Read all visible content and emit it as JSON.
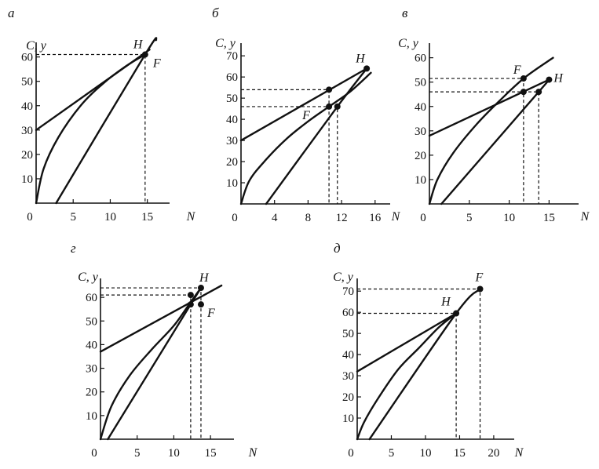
{
  "chart_data": [
    {
      "type": "line",
      "panel": "а",
      "xlabel": "N",
      "ylabel": "C, y",
      "xlim": [
        0,
        18
      ],
      "ylim": [
        0,
        66
      ],
      "xticks": [
        0,
        5,
        10,
        15
      ],
      "yticks": [
        10,
        20,
        30,
        40,
        50,
        60
      ],
      "series": [
        {
          "points": [
            [
              0,
              30
            ],
            [
              15.3,
              63
            ]
          ]
        },
        {
          "points": [
            [
              0,
              0
            ],
            [
              1,
              14
            ],
            [
              3,
              27
            ],
            [
              6,
              40
            ],
            [
              9,
              49
            ],
            [
              12,
              56
            ],
            [
              14.7,
              61
            ]
          ]
        },
        {
          "points": [
            [
              2.7,
              0
            ],
            [
              14.7,
              61
            ],
            [
              16.2,
              67
            ]
          ]
        }
      ],
      "points": [
        {
          "label": "H",
          "x": 14.7,
          "y": 61
        }
      ],
      "point_labels": [
        {
          "text": "H",
          "x": 14.7,
          "y": 61
        },
        {
          "text": "F",
          "x": 14.7,
          "y": 61
        }
      ],
      "guides": [
        {
          "x": 14.7,
          "y": 61
        }
      ]
    },
    {
      "type": "line",
      "panel": "б",
      "xlabel": "N",
      "ylabel": "C, y",
      "xlim": [
        0,
        17.8
      ],
      "ylim": [
        0,
        76
      ],
      "xticks": [
        0,
        4,
        8,
        12,
        16
      ],
      "yticks": [
        10,
        20,
        30,
        40,
        50,
        60,
        70
      ],
      "series": [
        {
          "points": [
            [
              0,
              30
            ],
            [
              15,
              64
            ]
          ]
        },
        {
          "points": [
            [
              0,
              0
            ],
            [
              1,
              11
            ],
            [
              3,
              21
            ],
            [
              5.5,
              31
            ],
            [
              8,
              39
            ],
            [
              10.5,
              46
            ],
            [
              13,
              53
            ],
            [
              15.5,
              62
            ]
          ]
        },
        {
          "points": [
            [
              3,
              0
            ],
            [
              11.5,
              46
            ],
            [
              15,
              64
            ]
          ]
        }
      ],
      "points": [
        {
          "x": 15,
          "y": 64
        },
        {
          "x": 10.5,
          "y": 54
        },
        {
          "x": 10.5,
          "y": 46
        },
        {
          "x": 11.5,
          "y": 46
        }
      ],
      "point_labels": [
        {
          "text": "H",
          "x": 15,
          "y": 64
        },
        {
          "text": "F",
          "x": 10.5,
          "y": 46
        }
      ],
      "guides": [
        {
          "x": 10.5,
          "y": 54
        },
        {
          "x": 11.5,
          "y": 46
        }
      ]
    },
    {
      "type": "line",
      "panel": "в",
      "xlabel": "N",
      "ylabel": "C, y",
      "xlim": [
        0,
        18.7
      ],
      "ylim": [
        0,
        66
      ],
      "xticks": [
        0,
        5,
        10,
        15
      ],
      "yticks": [
        10,
        20,
        30,
        40,
        50,
        60
      ],
      "series": [
        {
          "points": [
            [
              0,
              28
            ],
            [
              15,
              51
            ]
          ]
        },
        {
          "points": [
            [
              0,
              0
            ],
            [
              1,
              10
            ],
            [
              3,
              21
            ],
            [
              6,
              33
            ],
            [
              9,
              43
            ],
            [
              12,
              52
            ],
            [
              15.5,
              60
            ]
          ]
        },
        {
          "points": [
            [
              1.5,
              0
            ],
            [
              13.7,
              46
            ],
            [
              15,
              51
            ]
          ]
        }
      ],
      "points": [
        {
          "x": 15,
          "y": 51
        },
        {
          "x": 11.8,
          "y": 51.5
        },
        {
          "x": 11.8,
          "y": 46
        },
        {
          "x": 13.7,
          "y": 46
        }
      ],
      "point_labels": [
        {
          "text": "H",
          "x": 15,
          "y": 51
        },
        {
          "text": "F",
          "x": 11.8,
          "y": 51.5
        }
      ],
      "guides": [
        {
          "x": 11.8,
          "y": 51.5
        },
        {
          "x": 13.7,
          "y": 46
        }
      ]
    },
    {
      "type": "line",
      "panel": "г",
      "xlabel": "N",
      "ylabel": "C, y",
      "xlim": [
        0,
        18.2
      ],
      "ylim": [
        0,
        68
      ],
      "xticks": [
        0,
        5,
        10,
        15
      ],
      "yticks": [
        10,
        20,
        30,
        40,
        50,
        60
      ],
      "series": [
        {
          "points": [
            [
              0,
              37
            ],
            [
              16.5,
              65
            ]
          ]
        },
        {
          "points": [
            [
              0,
              0
            ],
            [
              1.5,
              14
            ],
            [
              4,
              27
            ],
            [
              7,
              38
            ],
            [
              10,
              48
            ],
            [
              12.3,
              58
            ],
            [
              13.7,
              64
            ]
          ]
        },
        {
          "points": [
            [
              1,
              0
            ],
            [
              12.3,
              57
            ],
            [
              13.7,
              64
            ]
          ]
        }
      ],
      "points": [
        {
          "x": 13.7,
          "y": 64
        },
        {
          "x": 12.3,
          "y": 61
        },
        {
          "x": 12.3,
          "y": 57
        },
        {
          "x": 13.7,
          "y": 57
        }
      ],
      "point_labels": [
        {
          "text": "H",
          "x": 13.7,
          "y": 64
        },
        {
          "text": "F",
          "x": 13.7,
          "y": 57
        }
      ],
      "guides": [
        {
          "x": 13.7,
          "y": 64
        },
        {
          "x": 12.3,
          "y": 61
        }
      ]
    },
    {
      "type": "line",
      "panel": "д",
      "xlabel": "N",
      "ylabel": "C, y",
      "xlim": [
        0,
        23
      ],
      "ylim": [
        0,
        76
      ],
      "xticks": [
        0,
        5,
        10,
        15,
        20
      ],
      "yticks": [
        10,
        20,
        30,
        40,
        50,
        60,
        70
      ],
      "series": [
        {
          "points": [
            [
              0,
              32
            ],
            [
              14.5,
              59.5
            ]
          ]
        },
        {
          "points": [
            [
              0,
              0
            ],
            [
              1,
              8
            ],
            [
              3,
              19
            ],
            [
              6,
              33
            ],
            [
              9,
              43
            ],
            [
              12,
              53
            ],
            [
              14.5,
              59.5
            ]
          ]
        },
        {
          "points": [
            [
              1.8,
              0
            ],
            [
              14.5,
              59.5
            ],
            [
              18,
              71
            ]
          ]
        }
      ],
      "points": [
        {
          "x": 14.5,
          "y": 59.5
        },
        {
          "x": 18,
          "y": 71
        }
      ],
      "point_labels": [
        {
          "text": "H",
          "x": 14.5,
          "y": 59.5
        },
        {
          "text": "F",
          "x": 18,
          "y": 71
        }
      ],
      "guides": [
        {
          "x": 14.5,
          "y": 59.5
        },
        {
          "x": 18,
          "y": 71
        }
      ]
    }
  ]
}
